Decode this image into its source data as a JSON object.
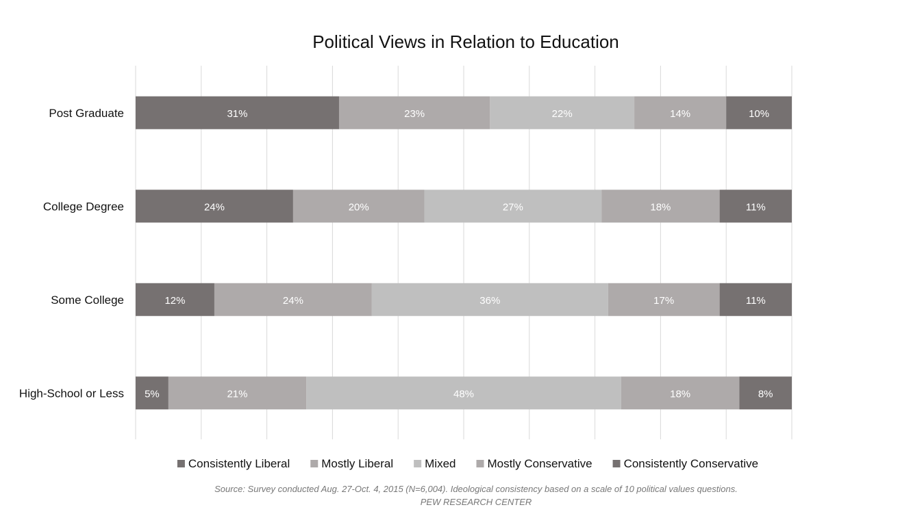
{
  "chart_data": {
    "type": "bar",
    "orientation": "horizontal",
    "stacked": true,
    "title": "Political Views in Relation to Education",
    "categories": [
      "Post Graduate",
      "College Degree",
      "Some College",
      "High-School or Less"
    ],
    "series": [
      {
        "name": "Consistently Liberal",
        "values": [
          31,
          24,
          12,
          5
        ],
        "color": "#767171",
        "labels": [
          "31%",
          "24%",
          "12%",
          "5%"
        ]
      },
      {
        "name": "Mostly Liberal",
        "values": [
          23,
          20,
          24,
          21
        ],
        "color": "#aeaaaa",
        "labels": [
          "23%",
          "20%",
          "24%",
          "21%"
        ]
      },
      {
        "name": "Mixed",
        "values": [
          22,
          27,
          36,
          48
        ],
        "color": "#bfbfbf",
        "labels": [
          "22%",
          "27%",
          "36%",
          "48%"
        ]
      },
      {
        "name": "Mostly Conservative",
        "values": [
          14,
          18,
          17,
          18
        ],
        "color": "#aeaaaa",
        "labels": [
          "14%",
          "18%",
          "17%",
          "18%"
        ]
      },
      {
        "name": "Consistently Conservative",
        "values": [
          10,
          11,
          11,
          8
        ],
        "color": "#767171",
        "labels": [
          "10%",
          "11%",
          "11%",
          "8%"
        ]
      }
    ],
    "xlim": [
      0,
      100
    ],
    "grid": true,
    "legend": "bottom",
    "xlabel": "",
    "ylabel": ""
  },
  "footer": {
    "source": "Source: Survey conducted Aug. 27-Oct. 4, 2015 (N=6,004). Ideological consistency based on a scale of 10 political values questions.",
    "org": "PEW RESEARCH CENTER"
  }
}
